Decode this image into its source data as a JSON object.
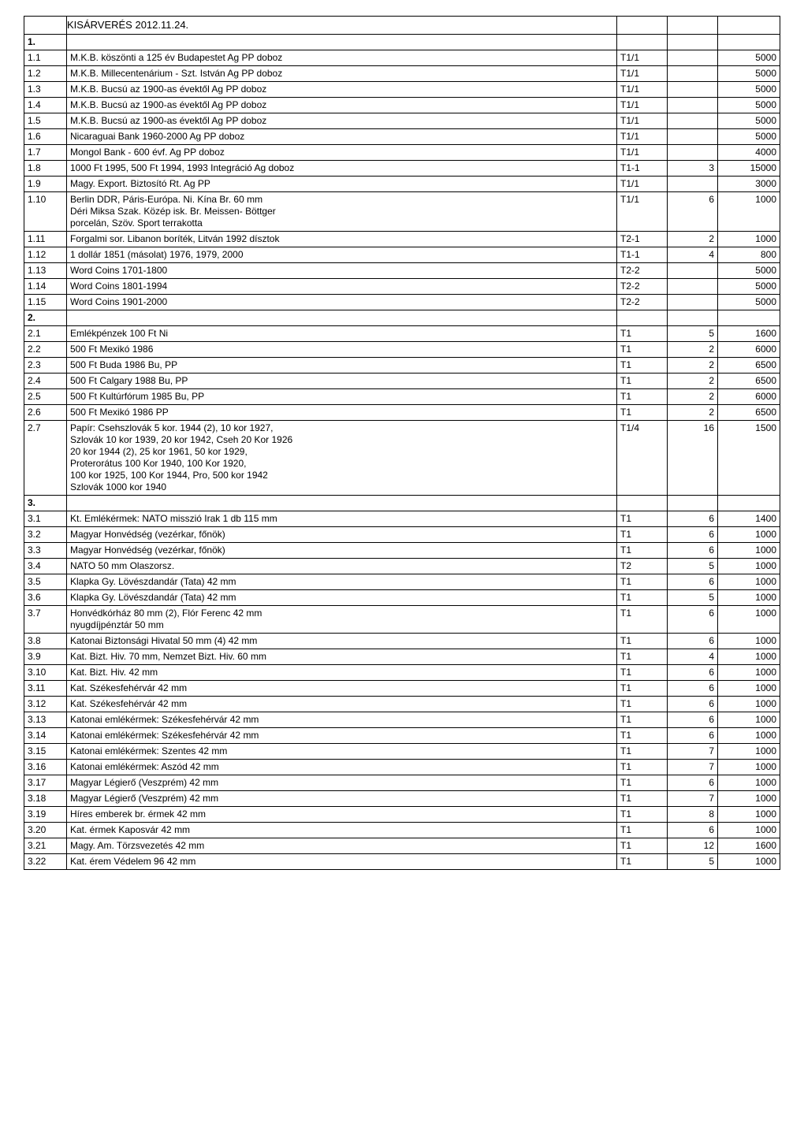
{
  "title": "KISÁRVERÉS 2012.11.24.",
  "rows": [
    {
      "n": "1.",
      "d": "",
      "c2": "",
      "c3": "",
      "c4": "",
      "bold": true
    },
    {
      "n": "1.1",
      "d": "M.K.B. köszönti a 125 év Budapestet Ag PP doboz",
      "c2": "T1/1",
      "c3": "",
      "c4": "5000"
    },
    {
      "n": "1.2",
      "d": "M.K.B. Millecentenárium - Szt. István Ag  PP doboz",
      "c2": "T1/1",
      "c3": "",
      "c4": "5000"
    },
    {
      "n": "1.3",
      "d": "M.K.B. Bucsú az 1900-as évektől  Ag PP doboz",
      "c2": "T1/1",
      "c3": "",
      "c4": "5000"
    },
    {
      "n": "1.4",
      "d": "M.K.B. Bucsú az 1900-as évektől  Ag PP doboz",
      "c2": "T1/1",
      "c3": "",
      "c4": "5000"
    },
    {
      "n": "1.5",
      "d": "M.K.B. Bucsú az 1900-as évektől  Ag PP doboz",
      "c2": "T1/1",
      "c3": "",
      "c4": "5000"
    },
    {
      "n": "1.6",
      "d": "Nicaraguai Bank 1960-2000  Ag PP doboz",
      "c2": "T1/1",
      "c3": "",
      "c4": "5000"
    },
    {
      "n": "1.7",
      "d": "Mongol Bank - 600 évf. Ag PP doboz",
      "c2": "T1/1",
      "c3": "",
      "c4": "4000"
    },
    {
      "n": "1.8",
      "d": "1000 Ft 1995, 500 Ft 1994, 1993 Integráció  Ag doboz",
      "c2": "T1-1",
      "c3": "3",
      "c4": "15000"
    },
    {
      "n": "1.9",
      "d": "Magy. Export. Biztosító Rt. Ag PP",
      "c2": "T1/1",
      "c3": "",
      "c4": "3000"
    },
    {
      "n": "1.10",
      "d": "Berlin DDR, Páris-Európa. Ni. Kína Br. 60 mm\nDéri Miksa Szak. Közép isk. Br. Meissen- Böttger\nporcelán, Szöv. Sport terrakotta",
      "c2": "T1/1",
      "c3": "6",
      "c4": "1000",
      "ml": true
    },
    {
      "n": "1.11",
      "d": "Forgalmi sor. Libanon  boríték, Litván 1992 dísztok",
      "c2": "T2-1",
      "c3": "2",
      "c4": "1000"
    },
    {
      "n": "1.12",
      "d": "1 dollár 1851 (másolat) 1976, 1979, 2000",
      "c2": "T1-1",
      "c3": "4",
      "c4": "800"
    },
    {
      "n": "1.13",
      "d": "Word Coins 1701-1800",
      "c2": "T2-2",
      "c3": "",
      "c4": "5000"
    },
    {
      "n": "1.14",
      "d": "Word Coins 1801-1994",
      "c2": "T2-2",
      "c3": "",
      "c4": "5000"
    },
    {
      "n": "1.15",
      "d": "Word Coins  1901-2000",
      "c2": "T2-2",
      "c3": "",
      "c4": "5000"
    },
    {
      "n": "2.",
      "d": "",
      "c2": "",
      "c3": "",
      "c4": "",
      "bold": true
    },
    {
      "n": "2.1",
      "d": "Emlékpénzek  100 Ft Ni",
      "c2": "T1",
      "c3": "5",
      "c4": "1600"
    },
    {
      "n": "2.2",
      "d": "500 Ft  Mexikó  1986",
      "c2": "T1",
      "c3": "2",
      "c4": "6000"
    },
    {
      "n": "2.3",
      "d": "500 Ft Buda  1986 Bu, PP",
      "c2": "T1",
      "c3": "2",
      "c4": "6500"
    },
    {
      "n": "2.4",
      "d": "500 Ft Calgary  1988 Bu, PP",
      "c2": "T1",
      "c3": "2",
      "c4": "6500"
    },
    {
      "n": "2.5",
      "d": "500 Ft Kultúrfórum  1985  Bu, PP",
      "c2": "T1",
      "c3": "2",
      "c4": "6000"
    },
    {
      "n": "2.6",
      "d": "500 Ft Mexikó  1986 PP",
      "c2": "T1",
      "c3": "2",
      "c4": "6500"
    },
    {
      "n": "2.7",
      "d": "Papír: Csehszlovák 5 kor. 1944 (2), 10 kor 1927,\nSzlovák 10 kor 1939, 20 kor 1942, Cseh 20 Kor 1926\n20 kor 1944 (2), 25 kor 1961, 50 kor 1929,\nProterorátus 100 Kor 1940, 100 Kor 1920,\n100 kor 1925, 100 Kor 1944, Pro, 500 kor 1942\nSzlovák 1000 kor 1940",
      "c2": "T1/4",
      "c3": "16",
      "c4": "1500",
      "ml": true
    },
    {
      "n": "3.",
      "d": "",
      "c2": "",
      "c3": "",
      "c4": "",
      "bold": true
    },
    {
      "n": "3.1",
      "d": "Kt. Emlékérmek: NATO misszió Irak 1 db 115 mm",
      "c2": "T1",
      "c3": "6",
      "c4": "1400"
    },
    {
      "n": "3.2",
      "d": "Magyar Honvédség (vezérkar, főnök)",
      "c2": "T1",
      "c3": "6",
      "c4": "1000"
    },
    {
      "n": "3.3",
      "d": "Magyar Honvédség (vezérkar, főnök)",
      "c2": "T1",
      "c3": "6",
      "c4": "1000"
    },
    {
      "n": "3.4",
      "d": "NATO 50 mm Olaszorsz.",
      "c2": "T2",
      "c3": "5",
      "c4": "1000"
    },
    {
      "n": "3.5",
      "d": "Klapka Gy. Lövészdandár (Tata) 42 mm",
      "c2": "T1",
      "c3": "6",
      "c4": "1000"
    },
    {
      "n": "3.6",
      "d": "Klapka Gy. Lövészdandár (Tata) 42 mm",
      "c2": "T1",
      "c3": "5",
      "c4": "1000"
    },
    {
      "n": "3.7",
      "d": "Honvédkórház 80 mm (2), Flór Ferenc 42 mm\nnyugdíjpénztár  50 mm",
      "c2": "T1",
      "c3": "6",
      "c4": "1000",
      "ml": true
    },
    {
      "n": "3.8",
      "d": "Katonai Biztonsági Hivatal  50 mm (4)  42 mm",
      "c2": "T1",
      "c3": "6",
      "c4": "1000"
    },
    {
      "n": "3.9",
      "d": "Kat. Bizt. Hiv.  70 mm, Nemzet Bizt. Hiv.  60 mm",
      "c2": "T1",
      "c3": "4",
      "c4": "1000"
    },
    {
      "n": "3.10",
      "d": "Kat. Bizt. Hiv.  42 mm",
      "c2": "T1",
      "c3": "6",
      "c4": "1000"
    },
    {
      "n": "3.11",
      "d": "Kat. Székesfehérvár  42 mm",
      "c2": "T1",
      "c3": "6",
      "c4": "1000"
    },
    {
      "n": "3.12",
      "d": "Kat. Székesfehérvár  42 mm",
      "c2": "T1",
      "c3": "6",
      "c4": "1000"
    },
    {
      "n": "3.13",
      "d": "Katonai emlékérmek: Székesfehérvár  42 mm",
      "c2": "T1",
      "c3": "6",
      "c4": "1000"
    },
    {
      "n": "3.14",
      "d": "Katonai emlékérmek: Székesfehérvár  42 mm",
      "c2": "T1",
      "c3": "6",
      "c4": "1000"
    },
    {
      "n": "3.15",
      "d": "Katonai emlékérmek: Szentes   42 mm",
      "c2": "T1",
      "c3": "7",
      "c4": "1000"
    },
    {
      "n": "3.16",
      "d": "Katonai emlékérmek: Aszód 42 mm",
      "c2": "T1",
      "c3": "7",
      "c4": "1000"
    },
    {
      "n": "3.17",
      "d": "Magyar Légierő (Veszprém)  42 mm",
      "c2": "T1",
      "c3": "6",
      "c4": "1000"
    },
    {
      "n": "3.18",
      "d": "Magyar Légierő (Veszprém)  42 mm",
      "c2": "T1",
      "c3": "7",
      "c4": "1000"
    },
    {
      "n": "3.19",
      "d": "Híres emberek  br. érmek 42 mm",
      "c2": "T1",
      "c3": "8",
      "c4": "1000"
    },
    {
      "n": "3.20",
      "d": "Kat. érmek  Kaposvár  42 mm",
      "c2": "T1",
      "c3": "6",
      "c4": "1000"
    },
    {
      "n": "3.21",
      "d": "Magy. Am. Törzsvezetés  42 mm",
      "c2": "T1",
      "c3": "12",
      "c4": "1600"
    },
    {
      "n": "3.22",
      "d": "Kat. érem Védelem 96     42 mm",
      "c2": "T1",
      "c3": "5",
      "c4": "1000"
    }
  ]
}
